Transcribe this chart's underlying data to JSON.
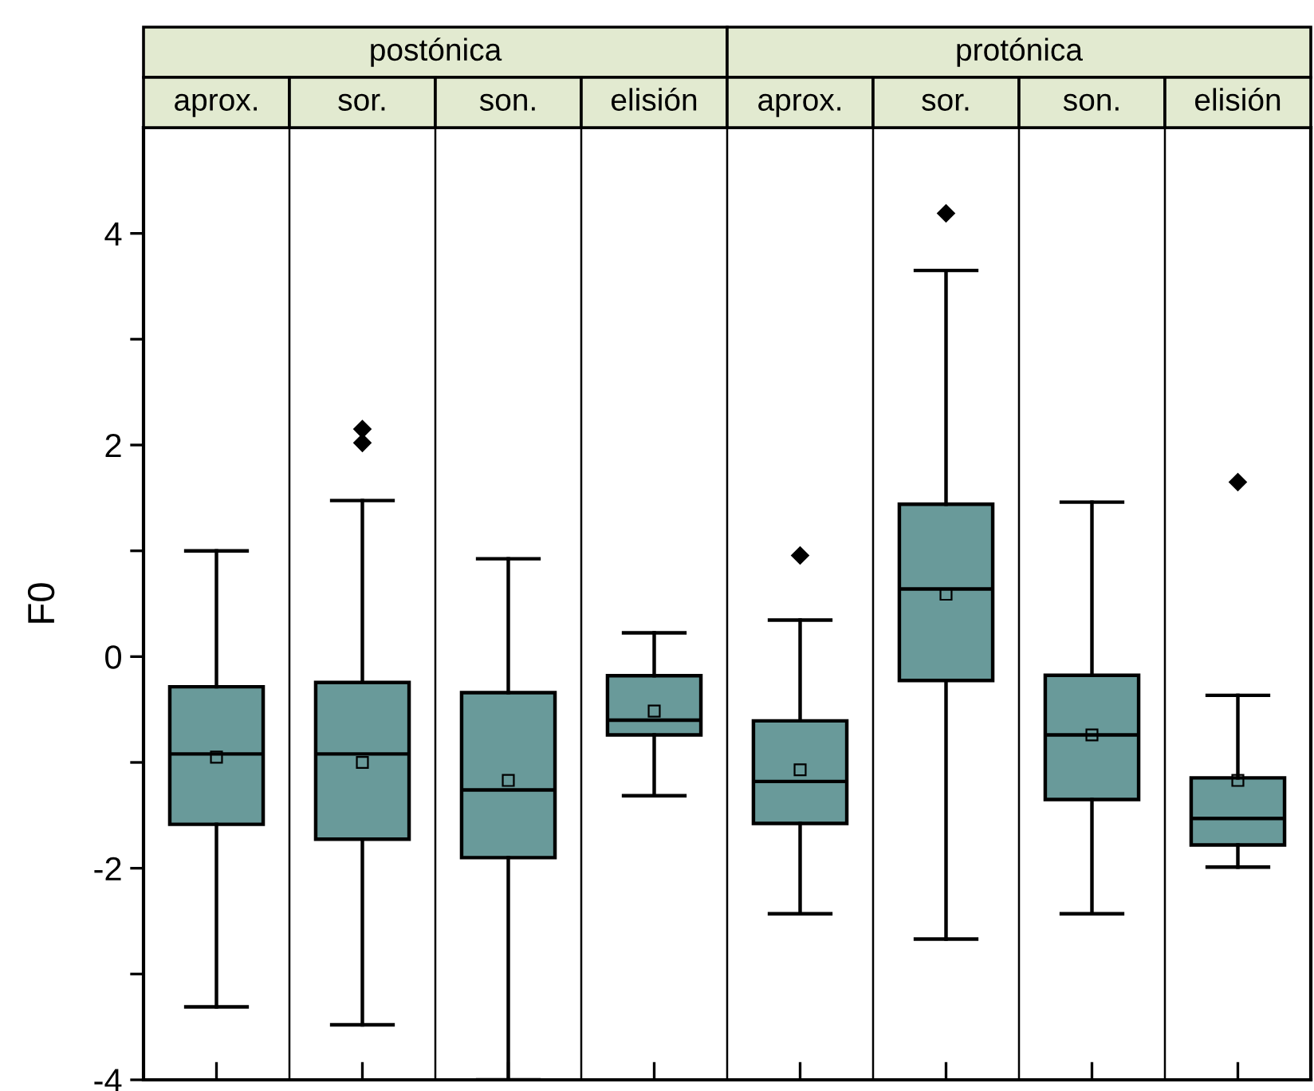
{
  "chart_data": {
    "type": "box",
    "ylabel": "F0",
    "categories": [
      "aprox.",
      "sor.",
      "son.",
      "elisión",
      "aprox.",
      "sor.",
      "son.",
      "elisión"
    ],
    "annotations": [
      "postónica",
      "protónica"
    ],
    "color": "#699a9a",
    "marker": "diamond",
    "grid": "x",
    "ylim": [
      -4,
      5
    ],
    "yticks": [
      -4,
      {
        "value": -3,
        "label": null
      },
      -2,
      {
        "value": -1,
        "label": null
      },
      0,
      {
        "value": 1,
        "label": null
      },
      2,
      {
        "value": 3,
        "label": null
      },
      4
    ],
    "tick_labels": "y",
    "boxes": [
      {
        "low": -3.31,
        "q1": -1.585,
        "median": -0.92,
        "q3": -0.285,
        "high": 1.0,
        "mean": -0.95
      },
      {
        "low": -3.48,
        "q1": -1.725,
        "median": -0.92,
        "q3": -0.245,
        "high": 1.475,
        "mean": -1.0,
        "outliers": [
          2.15,
          2.02
        ]
      },
      {
        "low": -4.0,
        "q1": -1.9,
        "median": -1.26,
        "q3": -0.34,
        "high": 0.925,
        "mean": -1.17
      },
      {
        "low": -1.315,
        "q1": -0.74,
        "median": -0.6,
        "q3": -0.18,
        "high": 0.225,
        "mean": -0.515
      },
      {
        "low": -2.43,
        "q1": -1.577,
        "median": -1.18,
        "q3": -0.607,
        "high": 0.346,
        "mean": -1.07,
        "outliers": [
          0.956
        ]
      },
      {
        "low": -2.67,
        "q1": -0.226,
        "median": 0.64,
        "q3": 1.44,
        "high": 3.65,
        "mean": 0.59,
        "outliers": [
          4.19
        ]
      },
      {
        "low": -2.43,
        "q1": -1.35,
        "median": -0.74,
        "q3": -0.176,
        "high": 1.46,
        "mean": -0.74
      },
      {
        "low": -1.99,
        "q1": -1.78,
        "median": -1.53,
        "q3": -1.146,
        "high": -0.366,
        "mean": -1.17,
        "outliers": [
          1.65
        ]
      }
    ]
  }
}
